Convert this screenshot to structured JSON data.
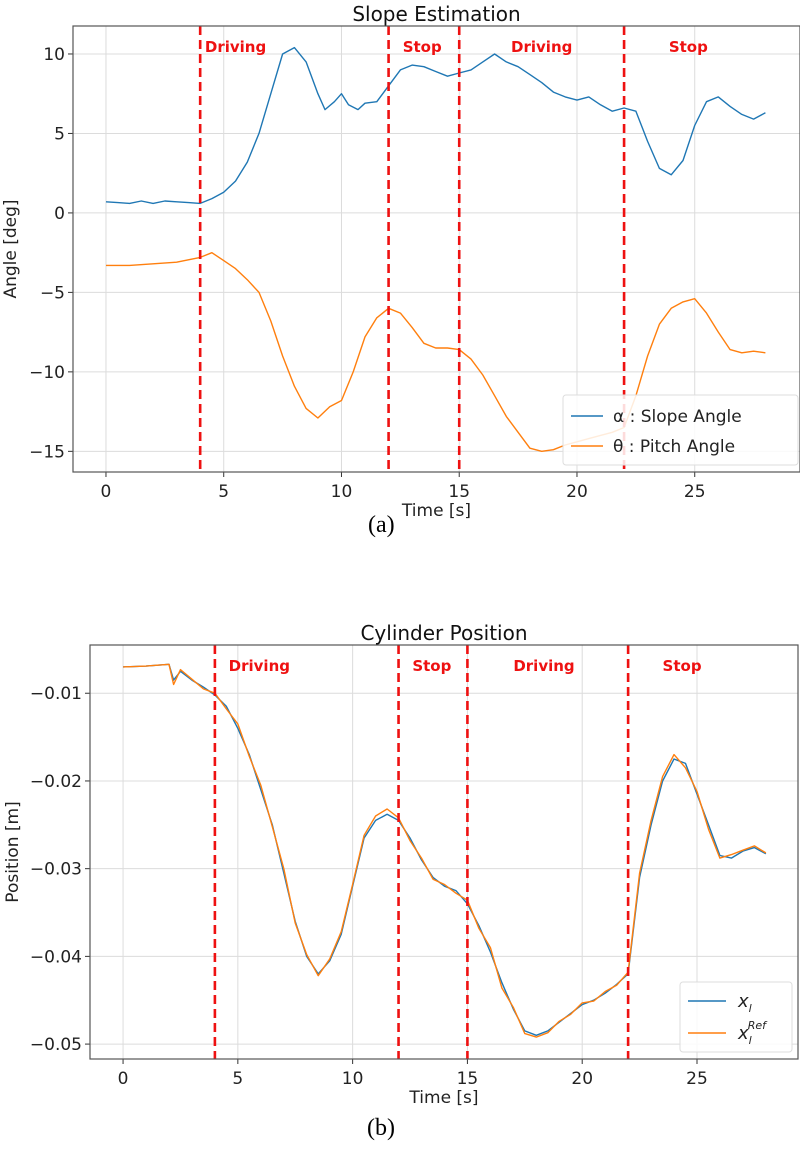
{
  "chart_data": [
    {
      "type": "line",
      "title": "Slope Estimation",
      "xlabel": "Time [s]",
      "ylabel": "Angle [deg]",
      "caption": "(a)",
      "xlim": [
        -1.4,
        29.47
      ],
      "ylim": [
        -16.3,
        11.76
      ],
      "xticks": [
        0,
        5,
        10,
        15,
        20,
        25
      ],
      "yticks": [
        10,
        5,
        0,
        -5,
        -10,
        -15
      ],
      "ytick_labels": [
        "10",
        "5",
        "0",
        "−5",
        "−10",
        "−15"
      ],
      "grid": true,
      "legend_position": "bottom-right",
      "phase_lines": [
        4,
        12,
        15,
        22
      ],
      "phases": [
        {
          "label": "Driving",
          "x": 4.2
        },
        {
          "label": "Stop",
          "x": 12.6
        },
        {
          "label": "Driving",
          "x": 17.2
        },
        {
          "label": "Stop",
          "x": 23.9
        }
      ],
      "series": [
        {
          "name": "α : Slope Angle",
          "color": "#1f77b4",
          "x": [
            0,
            0.5,
            1,
            1.5,
            2,
            2.5,
            3,
            3.5,
            4,
            4.5,
            5,
            5.5,
            6,
            6.5,
            7,
            7.5,
            8,
            8.5,
            9,
            9.3,
            9.7,
            10,
            10.3,
            10.7,
            11,
            11.5,
            12,
            12.5,
            13,
            13.5,
            14,
            14.5,
            15,
            15.5,
            16,
            16.5,
            17,
            17.5,
            18,
            18.5,
            19,
            19.5,
            20,
            20.5,
            21,
            21.5,
            22,
            22.5,
            23,
            23.5,
            24,
            24.5,
            25,
            25.5,
            26,
            26.5,
            27,
            27.5,
            28
          ],
          "y": [
            0.7,
            0.65,
            0.6,
            0.75,
            0.6,
            0.75,
            0.7,
            0.65,
            0.6,
            0.9,
            1.3,
            2.0,
            3.2,
            5.0,
            7.5,
            10.0,
            10.4,
            9.5,
            7.5,
            6.5,
            7.0,
            7.5,
            6.8,
            6.5,
            6.9,
            7.0,
            8.0,
            9.0,
            9.3,
            9.2,
            8.9,
            8.6,
            8.8,
            9.0,
            9.5,
            10.0,
            9.5,
            9.2,
            8.7,
            8.2,
            7.6,
            7.3,
            7.1,
            7.3,
            6.8,
            6.4,
            6.6,
            6.4,
            4.5,
            2.8,
            2.4,
            3.3,
            5.5,
            7.0,
            7.3,
            6.7,
            6.2,
            5.9,
            6.3
          ]
        },
        {
          "name": "θ : Pitch Angle",
          "color": "#ff7f0e",
          "x": [
            0,
            1,
            2,
            3,
            4,
            4.5,
            5,
            5.5,
            6,
            6.5,
            7,
            7.5,
            8,
            8.5,
            9,
            9.5,
            10,
            10.5,
            11,
            11.5,
            12,
            12.5,
            13,
            13.5,
            14,
            14.5,
            15,
            15.5,
            16,
            16.5,
            17,
            17.5,
            18,
            18.5,
            19,
            19.5,
            20,
            20.5,
            21,
            21.5,
            22,
            22.5,
            23,
            23.5,
            24,
            24.5,
            25,
            25.5,
            26,
            26.5,
            27,
            27.5,
            28
          ],
          "y": [
            -3.3,
            -3.3,
            -3.2,
            -3.1,
            -2.8,
            -2.5,
            -3.0,
            -3.5,
            -4.2,
            -5.0,
            -6.8,
            -9.0,
            -10.9,
            -12.3,
            -12.9,
            -12.2,
            -11.8,
            -10.0,
            -7.8,
            -6.6,
            -6.0,
            -6.3,
            -7.2,
            -8.2,
            -8.5,
            -8.5,
            -8.6,
            -9.2,
            -10.2,
            -11.5,
            -12.8,
            -13.8,
            -14.8,
            -15.0,
            -14.9,
            -14.6,
            -14.4,
            -14.2,
            -14.0,
            -13.8,
            -13.5,
            -11.5,
            -9.0,
            -7.0,
            -6.0,
            -5.6,
            -5.4,
            -6.3,
            -7.5,
            -8.6,
            -8.8,
            -8.7,
            -8.8
          ]
        }
      ]
    },
    {
      "type": "line",
      "title": "Cylinder Position",
      "xlabel": "Time [s]",
      "ylabel": "Position [m]",
      "caption": "(b)",
      "xlim": [
        -1.44,
        29.4
      ],
      "ylim": [
        -0.0517,
        -0.0045
      ],
      "xticks": [
        0,
        5,
        10,
        15,
        20,
        25
      ],
      "yticks": [
        -0.01,
        -0.02,
        -0.03,
        -0.04,
        -0.05
      ],
      "ytick_labels": [
        "−0.01",
        "−0.02",
        "−0.03",
        "−0.04",
        "−0.05"
      ],
      "grid": true,
      "legend_position": "bottom-right",
      "phase_lines": [
        4,
        12,
        15,
        22
      ],
      "phases": [
        {
          "label": "Driving",
          "x": 4.6
        },
        {
          "label": "Stop",
          "x": 12.6
        },
        {
          "label": "Driving",
          "x": 17.0
        },
        {
          "label": "Stop",
          "x": 23.5
        }
      ],
      "series": [
        {
          "name": "x_l",
          "label_main": "x",
          "label_sub": "l",
          "label_sup": "",
          "color": "#1f77b4",
          "x": [
            0,
            1,
            2,
            2.2,
            2.5,
            3,
            3.5,
            4,
            4.5,
            5,
            5.5,
            6,
            6.5,
            7,
            7.5,
            8,
            8.5,
            9,
            9.5,
            10,
            10.5,
            11,
            11.5,
            12,
            12.5,
            13,
            13.5,
            14,
            14.5,
            15,
            15.5,
            16,
            16.5,
            17,
            17.5,
            18,
            18.5,
            19,
            19.5,
            20,
            20.5,
            21,
            21.5,
            22,
            22.5,
            23,
            23.5,
            24,
            24.5,
            25,
            25.5,
            26,
            26.5,
            27,
            27.5,
            28
          ],
          "y": [
            -0.007,
            -0.0069,
            -0.0067,
            -0.0085,
            -0.0075,
            -0.0085,
            -0.0093,
            -0.0102,
            -0.0115,
            -0.014,
            -0.017,
            -0.021,
            -0.025,
            -0.0305,
            -0.036,
            -0.04,
            -0.042,
            -0.0405,
            -0.0375,
            -0.032,
            -0.0265,
            -0.0245,
            -0.0238,
            -0.0245,
            -0.0265,
            -0.029,
            -0.031,
            -0.032,
            -0.0325,
            -0.034,
            -0.0365,
            -0.0395,
            -0.043,
            -0.046,
            -0.0485,
            -0.049,
            -0.0485,
            -0.0475,
            -0.0465,
            -0.0455,
            -0.045,
            -0.0442,
            -0.0432,
            -0.042,
            -0.031,
            -0.025,
            -0.02,
            -0.0175,
            -0.018,
            -0.0215,
            -0.025,
            -0.0285,
            -0.0288,
            -0.028,
            -0.0276,
            -0.0283
          ]
        },
        {
          "name": "x_l^Ref",
          "label_main": "x",
          "label_sub": "l",
          "label_sup": "Ref",
          "color": "#ff7f0e",
          "x": [
            0,
            1,
            2,
            2.2,
            2.5,
            3,
            3.5,
            4,
            4.5,
            5,
            5.5,
            6,
            6.5,
            7,
            7.5,
            8,
            8.5,
            9,
            9.5,
            10,
            10.5,
            11,
            11.5,
            12,
            12.5,
            13,
            13.5,
            14,
            14.5,
            15,
            15.5,
            16,
            16.5,
            17,
            17.5,
            18,
            18.5,
            19,
            19.5,
            20,
            20.5,
            21,
            21.5,
            22,
            22.5,
            23,
            23.5,
            24,
            24.5,
            25,
            25.5,
            26,
            26.5,
            27,
            27.5,
            28
          ],
          "y": [
            -0.007,
            -0.0069,
            -0.0067,
            -0.009,
            -0.0073,
            -0.0084,
            -0.0095,
            -0.01,
            -0.0118,
            -0.0135,
            -0.0172,
            -0.0205,
            -0.0252,
            -0.03,
            -0.0362,
            -0.0398,
            -0.0422,
            -0.0403,
            -0.0372,
            -0.0318,
            -0.0262,
            -0.024,
            -0.0232,
            -0.0242,
            -0.0268,
            -0.0288,
            -0.0312,
            -0.0318,
            -0.0328,
            -0.0336,
            -0.0368,
            -0.039,
            -0.0436,
            -0.0458,
            -0.0488,
            -0.0492,
            -0.0487,
            -0.0474,
            -0.0466,
            -0.0453,
            -0.0451,
            -0.044,
            -0.0433,
            -0.0418,
            -0.0305,
            -0.0245,
            -0.0195,
            -0.017,
            -0.0185,
            -0.0212,
            -0.0255,
            -0.0288,
            -0.0284,
            -0.0279,
            -0.0274,
            -0.0282
          ]
        }
      ]
    }
  ]
}
